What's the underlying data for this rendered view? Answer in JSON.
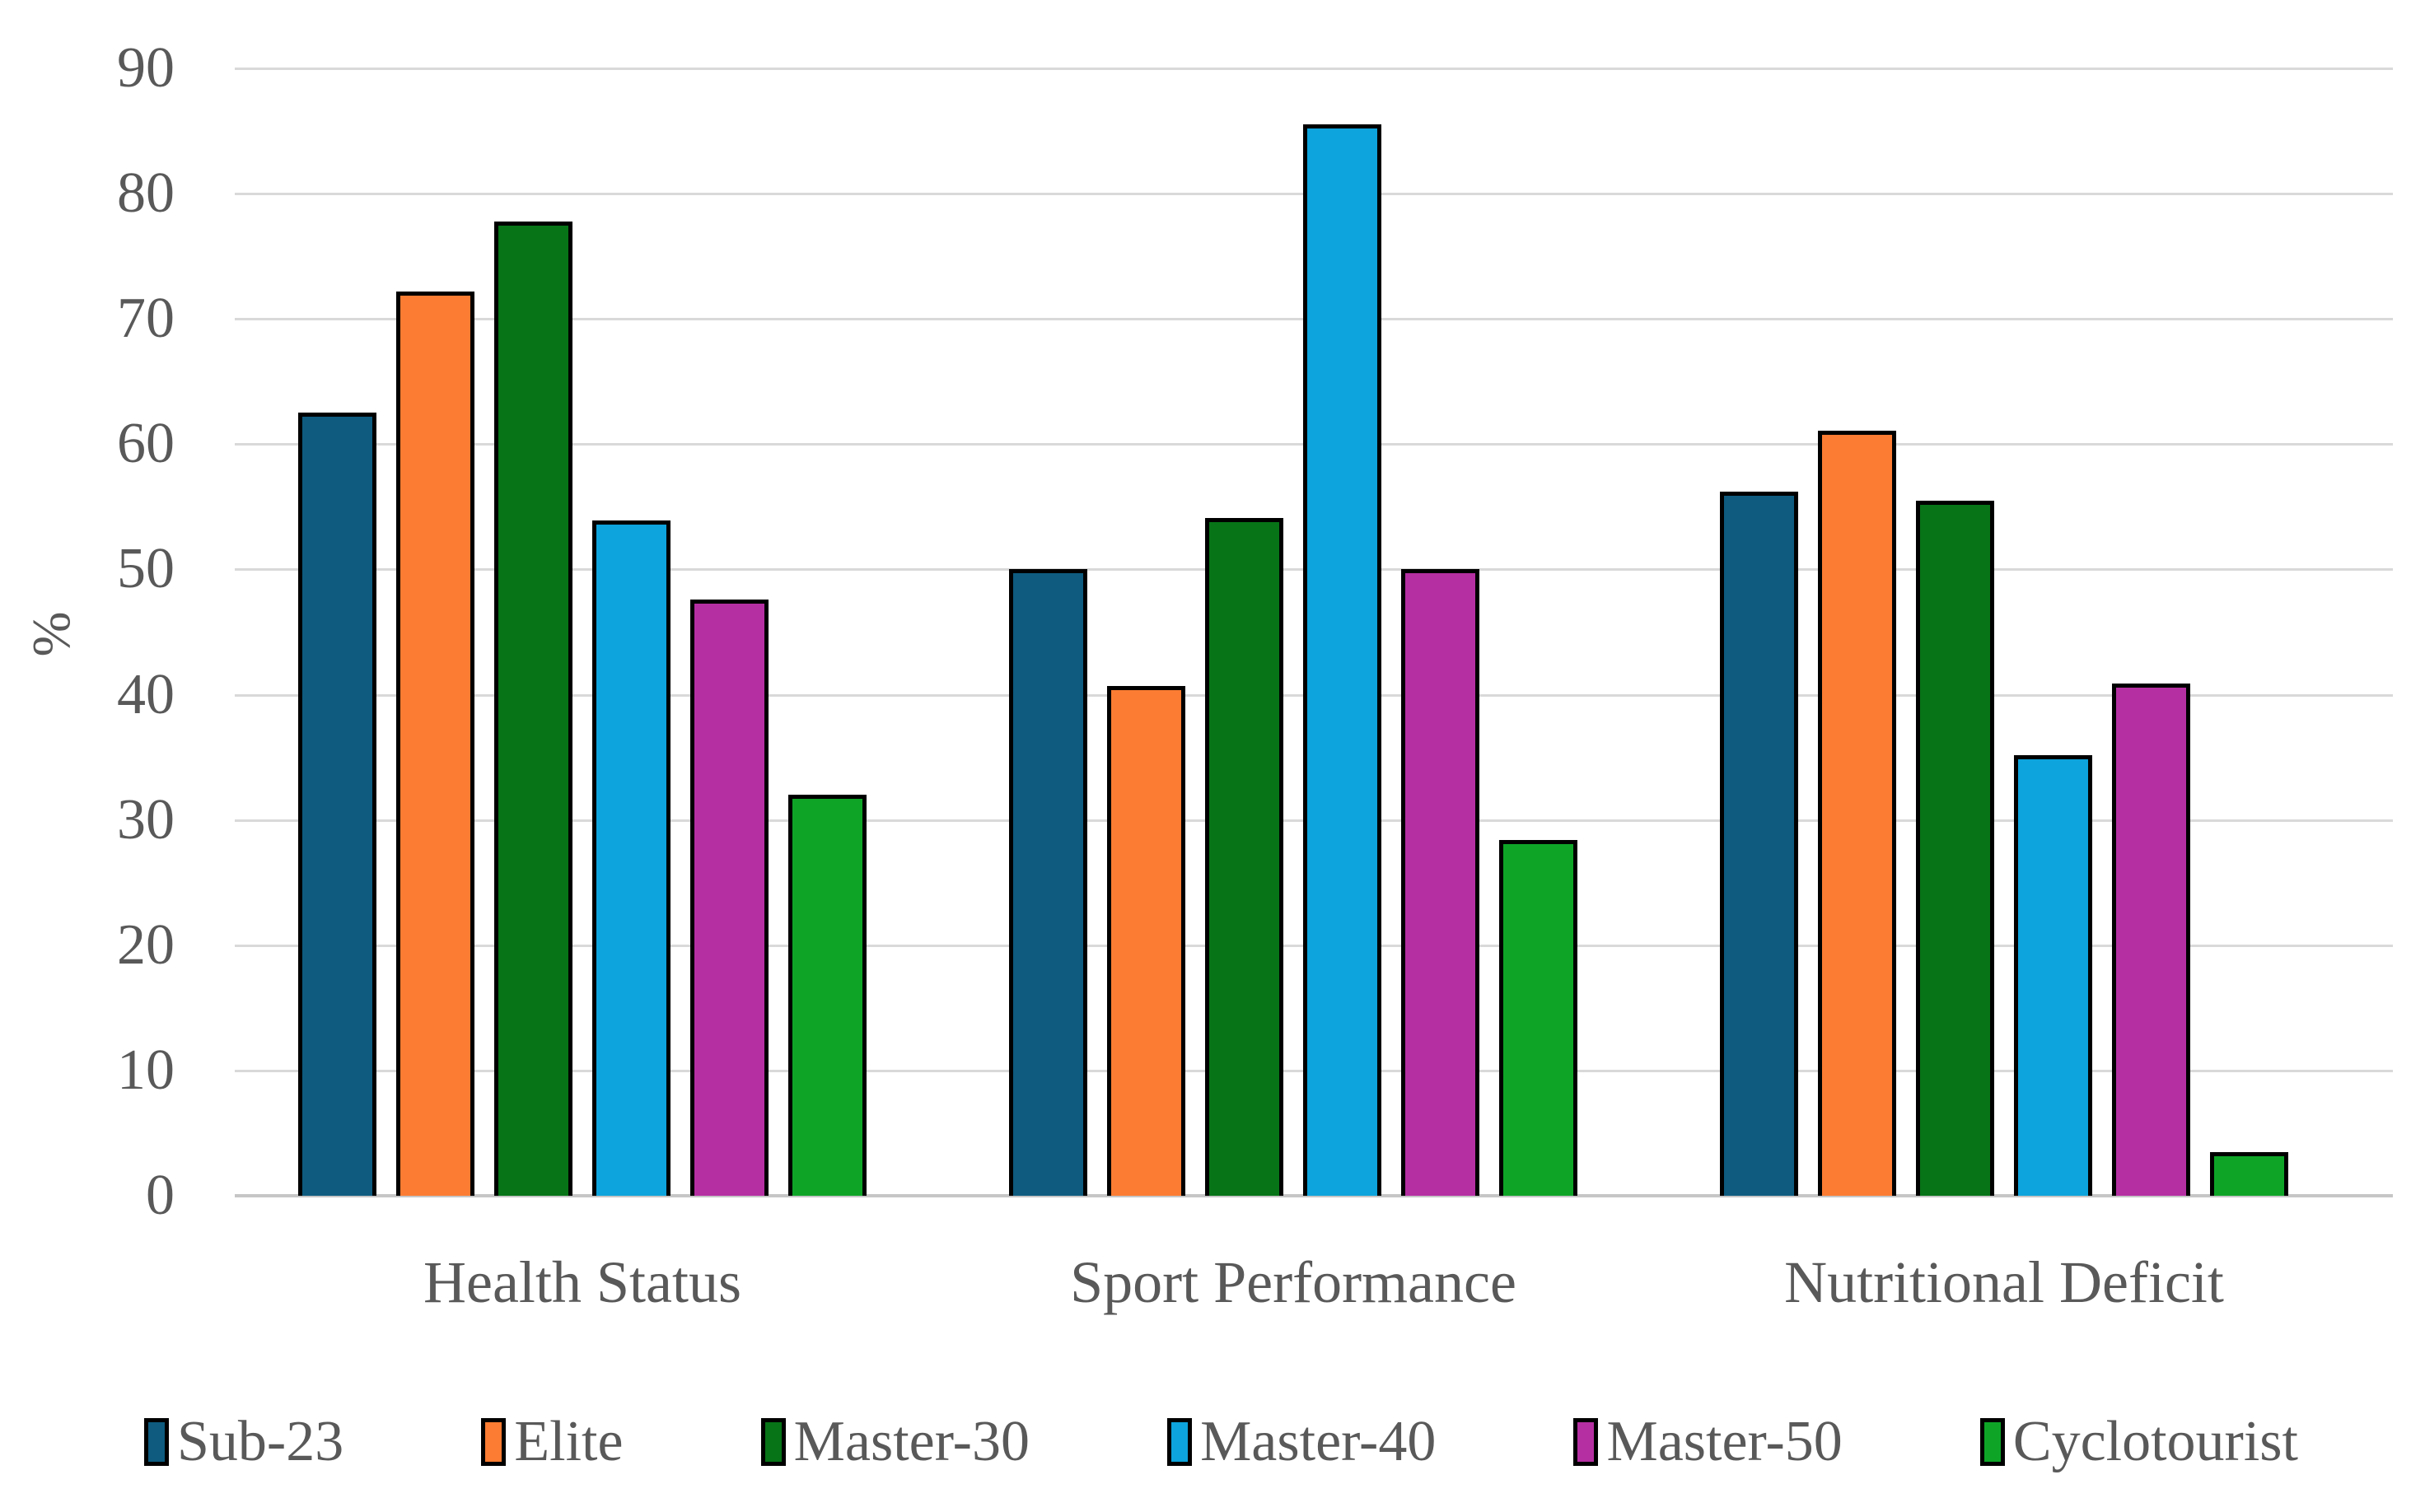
{
  "chart_data": {
    "type": "bar",
    "title": "",
    "xlabel": "",
    "ylabel": "%",
    "ylim": [
      0,
      90
    ],
    "yticks": [
      0,
      10,
      20,
      30,
      40,
      50,
      60,
      70,
      80,
      90
    ],
    "grid": true,
    "legend_position": "bottom",
    "categories": [
      "Health Status",
      "Sport Performance",
      "Nutritional Deficit"
    ],
    "series": [
      {
        "name": "Sub-23",
        "color": "#0e5b7f",
        "values": [
          62.5,
          50.0,
          56.2
        ]
      },
      {
        "name": "Elite",
        "color": "#fb7c32",
        "values": [
          72.2,
          40.7,
          61.1
        ]
      },
      {
        "name": "Master-30",
        "color": "#077417",
        "values": [
          77.8,
          54.1,
          55.5
        ]
      },
      {
        "name": "Master-40",
        "color": "#0da3dc",
        "values": [
          53.9,
          85.5,
          35.2
        ]
      },
      {
        "name": "Master-50",
        "color": "#b52fa2",
        "values": [
          47.6,
          50.0,
          40.9
        ]
      },
      {
        "name": "Cyclotourist",
        "color": "#0ea527",
        "values": [
          32.0,
          28.4,
          3.5
        ]
      }
    ],
    "colors": {
      "gridline": "#d9d9d9",
      "axis_line": "#c6c6c6",
      "bar_border": "#000000",
      "text": "#595959",
      "background": "#ffffff"
    }
  }
}
